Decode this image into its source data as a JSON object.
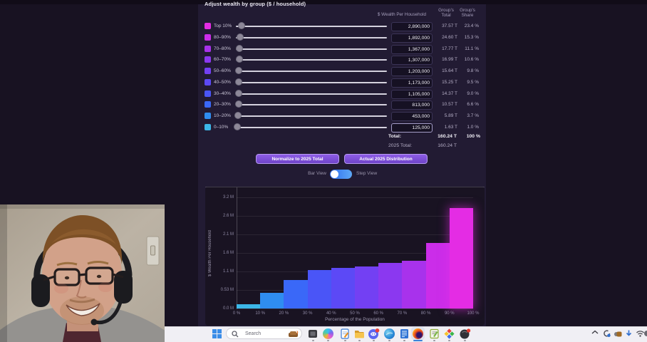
{
  "panel": {
    "title": "Adjust wealth by group ($ / household)",
    "col_wealth": "$ Wealth Per Household",
    "col_total_l1": "Group's",
    "col_total_l2": "Total",
    "col_share_l1": "Group's",
    "col_share_l2": "Share",
    "rows": [
      {
        "label": "Top 10%",
        "value": "2,890,000",
        "total": "37.57 T",
        "share": "23.4 %",
        "color": "#e42ce4"
      },
      {
        "label": "80–90%",
        "value": "1,892,000",
        "total": "24.60 T",
        "share": "15.3 %",
        "color": "#cb2de9"
      },
      {
        "label": "70–80%",
        "value": "1,367,000",
        "total": "17.77 T",
        "share": "11.1 %",
        "color": "#a832ec"
      },
      {
        "label": "60–70%",
        "value": "1,307,000",
        "total": "16.99 T",
        "share": "10.6 %",
        "color": "#8b38f0"
      },
      {
        "label": "50–60%",
        "value": "1,203,000",
        "total": "15.64 T",
        "share": "9.8 %",
        "color": "#7340f3"
      },
      {
        "label": "40–50%",
        "value": "1,173,000",
        "total": "15.25 T",
        "share": "9.5 %",
        "color": "#5c49f6"
      },
      {
        "label": "30–40%",
        "value": "1,105,000",
        "total": "14.37 T",
        "share": "9.0 %",
        "color": "#4a55f7"
      },
      {
        "label": "20–30%",
        "value": "813,000",
        "total": "10.57 T",
        "share": "6.6 %",
        "color": "#3a68f8"
      },
      {
        "label": "10–20%",
        "value": "453,000",
        "total": "5.89 T",
        "share": "3.7 %",
        "color": "#2f8df0"
      },
      {
        "label": "0–10%",
        "value": "125,000",
        "total": "1.63 T",
        "share": "1.0 %",
        "color": "#3cb7e8"
      }
    ],
    "total_label": "Total:",
    "total_value": "160.24 T",
    "total_share": "100 %",
    "total2025_label": "2025 Total:",
    "total2025_value": "160.24 T",
    "btn_normalize": "Normalize to 2025 Total",
    "btn_actual": "Actual 2025 Distribution",
    "toggle_left": "Bar View",
    "toggle_right": "Step View"
  },
  "chart_data": {
    "type": "bar",
    "title": "",
    "xlabel": "Percentage of the Population",
    "ylabel": "$ Wealth Per Household",
    "categories": [
      "0–10%",
      "10–20%",
      "20–30%",
      "30–40%",
      "40–50%",
      "50–60%",
      "60–70%",
      "70–80%",
      "80–90%",
      "90–100%"
    ],
    "values": [
      0.125,
      0.453,
      0.813,
      1.105,
      1.173,
      1.203,
      1.307,
      1.367,
      1.892,
      2.89
    ],
    "unit": "M $ per household",
    "ylim": [
      0,
      3.2
    ],
    "y_ticks": [
      "0.0 M",
      "0.53 M",
      "1.1 M",
      "1.6 M",
      "2.1 M",
      "2.6 M",
      "3.2 M"
    ],
    "x_ticks": [
      "0 %",
      "10 %",
      "20 %",
      "30 %",
      "40 %",
      "50 %",
      "60 %",
      "70 %",
      "80 %",
      "90 %",
      "100 %"
    ],
    "grid": true,
    "legend": false,
    "bar_colors": [
      "#3cb7e8",
      "#2f8df0",
      "#3a68f8",
      "#4a55f7",
      "#5c49f6",
      "#7340f3",
      "#8b38f0",
      "#a832ec",
      "#cb2de9",
      "#e42ce4"
    ]
  },
  "taskbar": {
    "search_placeholder": "Search"
  }
}
